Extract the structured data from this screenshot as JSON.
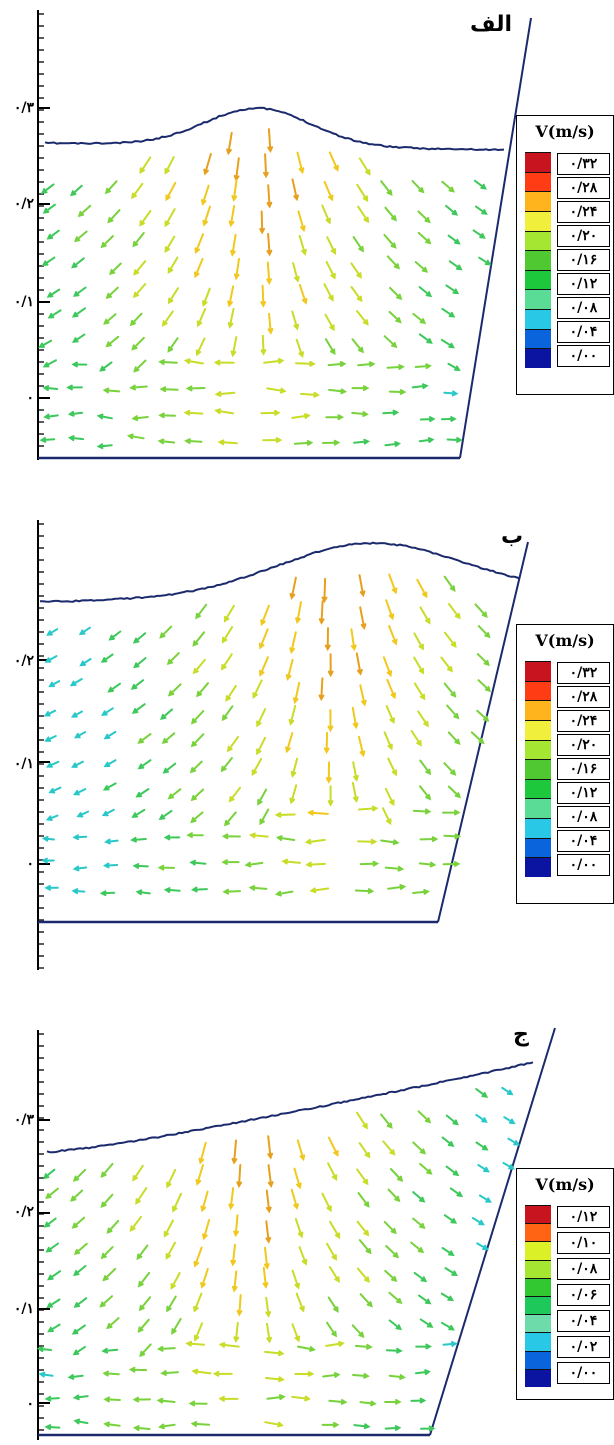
{
  "panels": [
    {
      "title": "الف",
      "y_tick_labels": [
        "۰/۳",
        "۰/۲",
        "۰/۱",
        "۰"
      ],
      "legend": {
        "title": "V(m/s)",
        "levels": [
          "۰/۳۲",
          "۰/۲۸",
          "۰/۲۴",
          "۰/۲۰",
          "۰/۱۶",
          "۰/۱۲",
          "۰/۰۸",
          "۰/۰۴",
          "۰/۰۰"
        ],
        "colors": [
          "#c8141e",
          "#ff3c14",
          "#ffb41e",
          "#f0f03c",
          "#a5e632",
          "#50c832",
          "#1ec83c",
          "#5adc96",
          "#28c8e6",
          "#0a64dc",
          "#0a14a0"
        ]
      }
    },
    {
      "title": "ب",
      "y_tick_labels": [
        "۰/۲",
        "۰/۱",
        "۰"
      ],
      "legend": {
        "title": "V(m/s)",
        "levels": [
          "۰/۳۲",
          "۰/۲۸",
          "۰/۲۴",
          "۰/۲۰",
          "۰/۱۶",
          "۰/۱۲",
          "۰/۰۸",
          "۰/۰۴",
          "۰/۰۰"
        ],
        "colors": [
          "#c8141e",
          "#ff3c14",
          "#ffb41e",
          "#f0f03c",
          "#a5e632",
          "#50c832",
          "#1ec83c",
          "#5adc96",
          "#28c8e6",
          "#0a64dc",
          "#0a14a0"
        ]
      }
    },
    {
      "title": "ج",
      "y_tick_labels": [
        "۰/۳",
        "۰/۲",
        "۰/۱",
        "۰"
      ],
      "legend": {
        "title": "V(m/s)",
        "levels": [
          "۰/۱۲",
          "۰/۱۰",
          "۰/۰۸",
          "۰/۰۶",
          "۰/۰۴",
          "۰/۰۲",
          "۰/۰۰"
        ],
        "colors": [
          "#c8141e",
          "#ff6414",
          "#dcf028",
          "#a5e632",
          "#32c832",
          "#1ec85a",
          "#6edcaa",
          "#28c8e6",
          "#0a64dc",
          "#0a14a0"
        ]
      }
    }
  ]
}
